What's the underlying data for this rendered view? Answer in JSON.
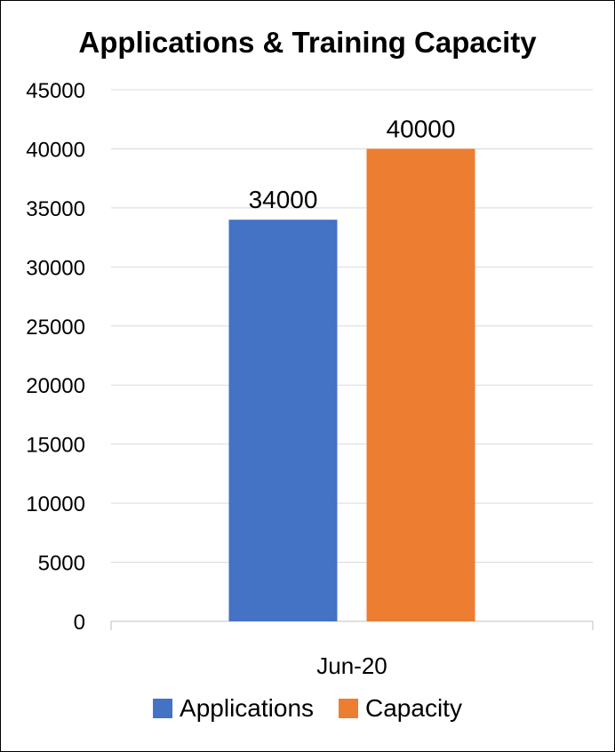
{
  "chart_data": {
    "type": "bar",
    "title": "Applications & Training Capacity",
    "categories": [
      "Jun-20"
    ],
    "series": [
      {
        "name": "Applications",
        "values": [
          34000
        ],
        "color": "#4472C4"
      },
      {
        "name": "Capacity",
        "values": [
          40000
        ],
        "color": "#ED7D31"
      }
    ],
    "xlabel": "",
    "ylabel": "",
    "ylim": [
      0,
      45000
    ],
    "yticks": [
      0,
      5000,
      10000,
      15000,
      20000,
      25000,
      30000,
      35000,
      40000,
      45000
    ],
    "grid": true,
    "legend_position": "bottom",
    "data_labels": true
  }
}
